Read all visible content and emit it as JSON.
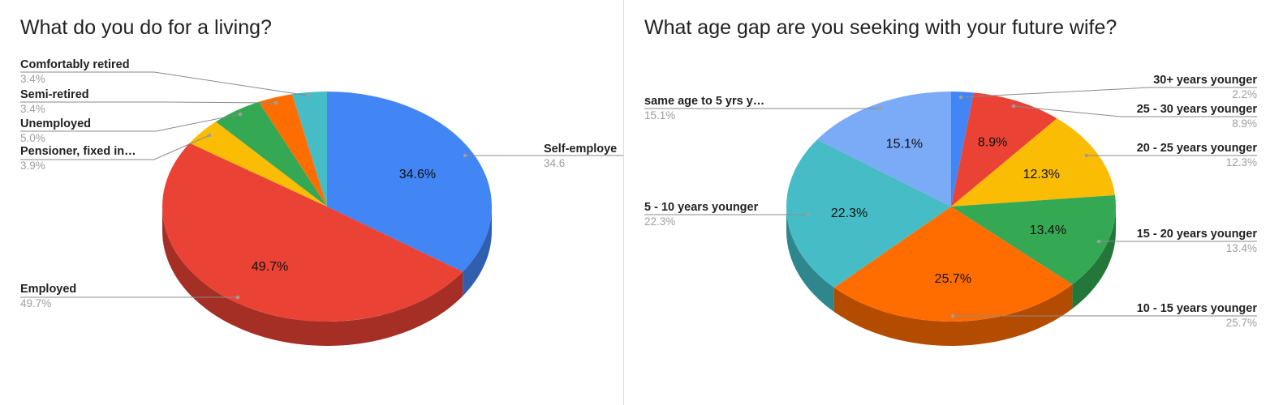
{
  "chart_data": [
    {
      "type": "pie",
      "title": "What do you do for a living?",
      "slices": [
        {
          "label": "Self-employed",
          "display_label": "Self-employe",
          "value": 34.6,
          "pct_label": "34.6%",
          "pct_side_label": "34.6",
          "color": "#4285f4",
          "dark": "#2f5fae"
        },
        {
          "label": "Employed",
          "value": 49.7,
          "pct_label": "49.7%",
          "color": "#ea4335",
          "dark": "#a52f25"
        },
        {
          "label": "Pensioner, fixed in…",
          "value": 3.9,
          "pct_label": "3.9%",
          "color": "#fbbc04",
          "dark": "#b48602"
        },
        {
          "label": "Unemployed",
          "value": 5.0,
          "pct_label": "5.0%",
          "color": "#34a853",
          "dark": "#237738"
        },
        {
          "label": "Semi-retired",
          "value": 3.4,
          "pct_label": "3.4%",
          "color": "#ff6d01",
          "dark": "#b44c00"
        },
        {
          "label": "Comfortably retired",
          "value": 3.4,
          "pct_label": "3.4%",
          "color": "#46bdc6",
          "dark": "#2f868c"
        }
      ]
    },
    {
      "type": "pie",
      "title": "What age gap are you seeking with your future wife?",
      "slices": [
        {
          "label": "30+ years younger",
          "value": 2.2,
          "pct_label": "2.2%",
          "color": "#4285f4",
          "dark": "#2f5fae"
        },
        {
          "label": "25 - 30 years younger",
          "value": 8.9,
          "pct_label": "8.9%",
          "color": "#ea4335",
          "dark": "#a52f25"
        },
        {
          "label": "20 - 25 years younger",
          "value": 12.3,
          "pct_label": "12.3%",
          "color": "#fbbc04",
          "dark": "#b48602"
        },
        {
          "label": "15 - 20 years younger",
          "value": 13.4,
          "pct_label": "13.4%",
          "color": "#34a853",
          "dark": "#237738"
        },
        {
          "label": "10 - 15 years younger",
          "value": 25.7,
          "pct_label": "25.7%",
          "color": "#ff6d01",
          "dark": "#b44c00"
        },
        {
          "label": "5 - 10 years younger",
          "value": 22.3,
          "pct_label": "22.3%",
          "color": "#46bdc6",
          "dark": "#2f868c"
        },
        {
          "label": "same age to 5 yrs y…",
          "value": 15.1,
          "pct_label": "15.1%",
          "color": "#7baaf7",
          "dark": "#567fc0"
        }
      ]
    }
  ]
}
